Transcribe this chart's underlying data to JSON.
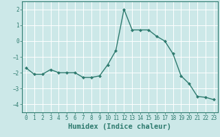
{
  "x": [
    0,
    1,
    2,
    3,
    4,
    5,
    6,
    7,
    8,
    9,
    10,
    11,
    12,
    13,
    14,
    15,
    16,
    17,
    18,
    19,
    20,
    21,
    22,
    23
  ],
  "y": [
    -1.7,
    -2.1,
    -2.1,
    -1.8,
    -2.0,
    -2.0,
    -2.0,
    -2.3,
    -2.3,
    -2.2,
    -1.5,
    -0.6,
    2.0,
    0.7,
    0.7,
    0.7,
    0.3,
    0.0,
    -0.8,
    -2.2,
    -2.7,
    -3.5,
    -3.55,
    -3.7
  ],
  "line_color": "#2d7a6e",
  "marker": "D",
  "marker_size": 2.2,
  "bg_color": "#cce8e8",
  "grid_color": "#ffffff",
  "tick_color": "#2d7a6e",
  "xlabel": "Humidex (Indice chaleur)",
  "xlabel_fontsize": 7.5,
  "ylim": [
    -4.5,
    2.5
  ],
  "yticks": [
    -4,
    -3,
    -2,
    -1,
    0,
    1,
    2
  ],
  "xticks": [
    0,
    1,
    2,
    3,
    4,
    5,
    6,
    7,
    8,
    9,
    10,
    11,
    12,
    13,
    14,
    15,
    16,
    17,
    18,
    19,
    20,
    21,
    22,
    23
  ],
  "tick_fontsize": 5.5,
  "line_width": 1.0
}
